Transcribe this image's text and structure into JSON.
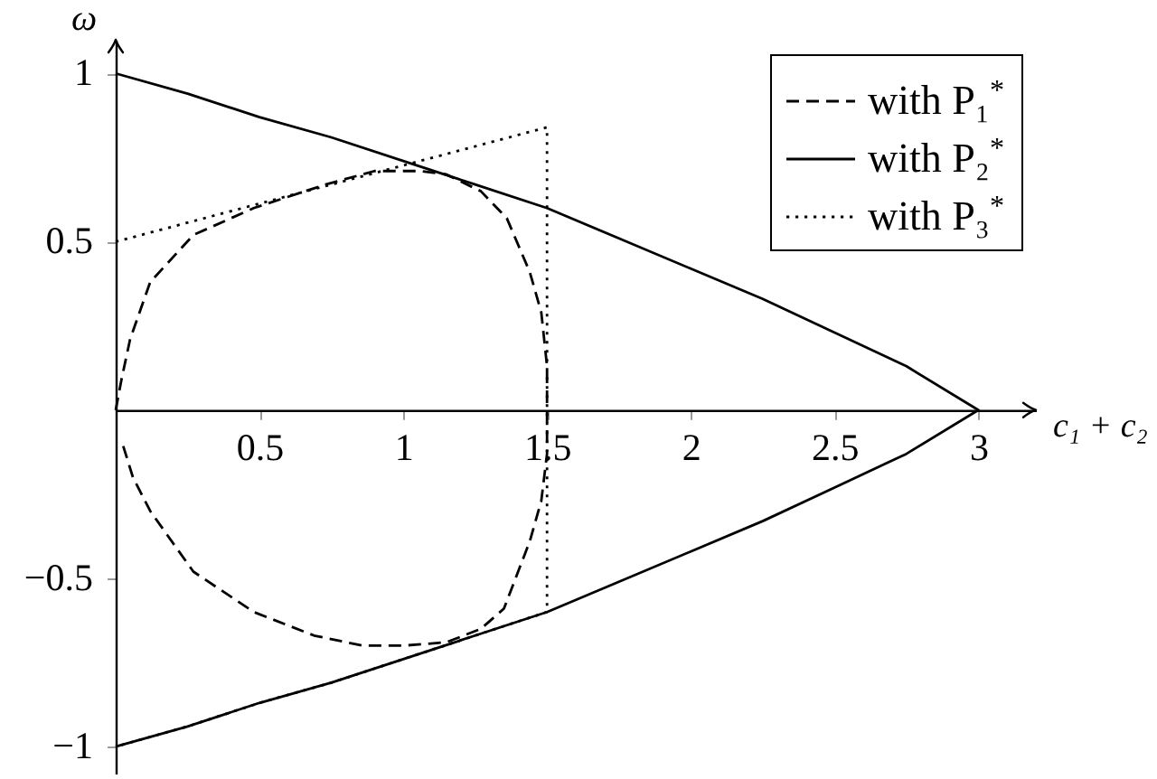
{
  "chart_data": {
    "type": "line",
    "xlabel": "c₁ + c₂",
    "ylabel": "ω",
    "xlim": [
      0,
      3.2
    ],
    "ylim": [
      -1.08,
      1.1
    ],
    "xticks": [
      0.5,
      1,
      1.5,
      2,
      2.5,
      3
    ],
    "yticks": [
      -1,
      -0.5,
      0.5,
      1
    ],
    "legend": "top right",
    "series": [
      {
        "name": "with P₁$^{*}$",
        "color": "#000000",
        "line_style": "dashed",
        "x": [
          0,
          0.02,
          0.05,
          0.12,
          0.27,
          0.48,
          0.73,
          0.9,
          1.06,
          1.15,
          1.27,
          1.36,
          1.44,
          1.48,
          1.5,
          1.5,
          1.5,
          1.48,
          1.44,
          1.35,
          1.27,
          1.15,
          1.0,
          0.86,
          0.69,
          0.48,
          0.27,
          0.12,
          0.06,
          0.02
        ],
        "values": [
          0,
          0.09,
          0.21,
          0.38,
          0.52,
          0.6,
          0.67,
          0.71,
          0.71,
          0.7,
          0.65,
          0.57,
          0.41,
          0.29,
          0.13,
          0,
          -0.13,
          -0.27,
          -0.39,
          -0.59,
          -0.65,
          -0.69,
          -0.7,
          -0.7,
          -0.67,
          -0.6,
          -0.48,
          -0.3,
          -0.2,
          -0.09
        ]
      },
      {
        "name": "with P₂$^{*}$",
        "color": "#000000",
        "line_style": "solid",
        "x": [
          0,
          0.25,
          0.5,
          0.75,
          1,
          1.25,
          1.5,
          1.75,
          2,
          2.25,
          2.5,
          2.75,
          3,
          2.75,
          2.5,
          2.25,
          2,
          1.75,
          1.5,
          1.25,
          1,
          0.75,
          0.5,
          0.25,
          0
        ],
        "values": [
          1,
          0.94,
          0.87,
          0.81,
          0.74,
          0.67,
          0.6,
          0.51,
          0.42,
          0.33,
          0.23,
          0.13,
          0,
          -0.13,
          -0.23,
          -0.33,
          -0.42,
          -0.51,
          -0.6,
          -0.67,
          -0.74,
          -0.81,
          -0.87,
          -0.94,
          -1
        ]
      },
      {
        "name": "with P₃$^{*}$",
        "color": "#000000",
        "line_style": "dotted",
        "x": [
          0,
          1.5,
          1.5,
          1.25,
          1,
          0.75,
          0.5,
          0.25,
          0
        ],
        "values": [
          0.5,
          0.84,
          -0.6,
          -0.67,
          -0.74,
          -0.81,
          -0.87,
          -0.94,
          -1
        ]
      }
    ]
  }
}
